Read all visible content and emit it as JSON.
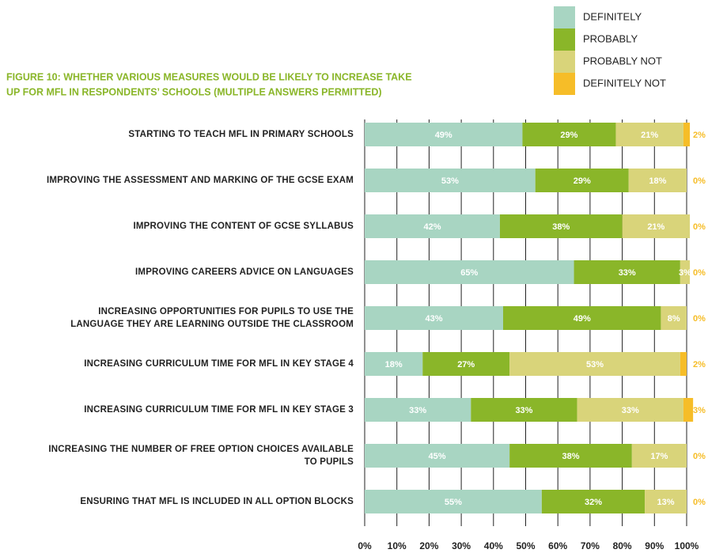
{
  "chart_data": {
    "type": "stacked_barh",
    "title": [
      "FIGURE 10: WHETHER VARIOUS MEASURES WOULD BE LIKELY TO INCREASE TAKE",
      "UP FOR MFL IN RESPONDENTS’ SCHOOLS (MULTIPLE ANSWERS PERMITTED)"
    ],
    "title_color": "#8ab629",
    "categories": [
      "STARTING TO TEACH MFL IN PRIMARY SCHOOLS",
      "IMPROVING THE ASSESSMENT AND MARKING OF THE GCSE EXAM",
      "IMPROVING THE CONTENT OF GCSE SYLLABUS",
      "IMPROVING CAREERS ADVICE ON LANGUAGES",
      "INCREASING OPPORTUNITIES FOR PUPILS TO USE THE\nLANGUAGE THEY ARE LEARNING OUTSIDE THE CLASSROOM",
      "INCREASING CURRICULUM TIME FOR MFL IN KEY STAGE 4",
      "INCREASING CURRICULUM TIME FOR MFL IN KEY STAGE 3",
      "INCREASING THE NUMBER OF FREE OPTION CHOICES AVAILABLE\nTO PUPILS",
      "ENSURING THAT MFL IS INCLUDED IN ALL OPTION BLOCKS"
    ],
    "series": [
      {
        "name": "DEFINITELY",
        "color": "#a8d5c2",
        "values": [
          49,
          53,
          42,
          65,
          43,
          18,
          33,
          45,
          55
        ],
        "value_labels": [
          "49%",
          "53%",
          "42%",
          "65%",
          "43%",
          "18%",
          "33%",
          "45%",
          "55%"
        ]
      },
      {
        "name": "PROBABLY",
        "color": "#8ab629",
        "values": [
          29,
          29,
          38,
          33,
          49,
          27,
          33,
          38,
          32
        ],
        "value_labels": [
          "29%",
          "29%",
          "38%",
          "33%",
          "49%",
          "27%",
          "33%",
          "38%",
          "32%"
        ]
      },
      {
        "name": "PROBABLY NOT",
        "color": "#d9d47a",
        "values": [
          21,
          18,
          21,
          3,
          8,
          53,
          33,
          17,
          13
        ],
        "value_labels": [
          "21%",
          "18%",
          "21%",
          "3%",
          "8%",
          "53%",
          "33%",
          "17%",
          "13%"
        ]
      },
      {
        "name": "DEFINITELY NOT",
        "color": "#f6bd28",
        "values": [
          2,
          0,
          0,
          0,
          0,
          2,
          3,
          0,
          0
        ],
        "value_labels": [
          "2%",
          "0%",
          "0%",
          "0%",
          "0%",
          "2%",
          "3%",
          "0%",
          "0%"
        ]
      }
    ],
    "xlim": [
      0,
      100
    ],
    "xticks": [
      {
        "value": 0,
        "label": "0%"
      },
      {
        "value": 10,
        "label": "10%"
      },
      {
        "value": 20,
        "label": "20%"
      },
      {
        "value": 30,
        "label": "30%"
      },
      {
        "value": 40,
        "label": "40%"
      },
      {
        "value": 50,
        "label": "50%"
      },
      {
        "value": 60,
        "label": "60%"
      },
      {
        "value": 70,
        "label": "70%"
      },
      {
        "value": 80,
        "label": "80%"
      },
      {
        "value": 90,
        "label": "90%"
      },
      {
        "value": 100,
        "label": "100%"
      }
    ],
    "grid": true,
    "legend": "top-right"
  }
}
